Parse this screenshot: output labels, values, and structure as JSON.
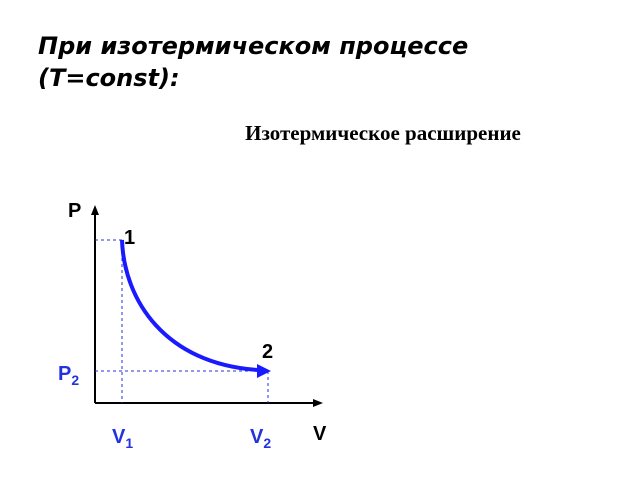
{
  "header": {
    "title_lines": [
      "При изотермическом процессе",
      "(T=const):"
    ],
    "subtitle": "Изотермическое расширение"
  },
  "diagram": {
    "y_axis_label": "P",
    "x_axis_label": "V",
    "points": [
      {
        "label": "1"
      },
      {
        "label": "2"
      }
    ],
    "pressure_label": {
      "main": "P",
      "sub": "2"
    },
    "volume_labels": [
      {
        "main": "V",
        "sub": "1"
      },
      {
        "main": "V",
        "sub": "2"
      }
    ]
  }
}
